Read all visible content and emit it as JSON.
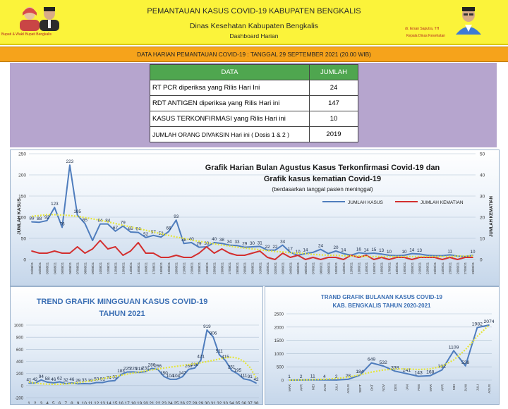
{
  "header": {
    "title": "PEMANTAUAN KASUS COVID-19 KABUPATEN BENGKALIS",
    "subtitle": "Dinas Kesehatan Kabupaten Bengkalis",
    "dashboard": "Dashboard Harian",
    "left_caption": "Bupati & Wakil Bupati Bengkalis",
    "right_name": "dr. Ersan Saputra, TH",
    "right_caption": "Kepala Dinas Kesehatan",
    "colors": {
      "background": "#fbf33a",
      "banner": "#f6a31b",
      "panel": "#b6a5ce",
      "table_header": "#4fa64f"
    }
  },
  "banner": "DATA HARIAN PEMANTAUAN COVID-19 : TANGGAL 29 SEPTEMBER 2021 (20.00 WIB)",
  "table": {
    "col_data": "DATA",
    "col_jumlah": "JUMLAH",
    "rows": [
      {
        "label": "RT PCR diperiksa yang Rilis Hari Ini",
        "value": "24"
      },
      {
        "label": "RDT ANTIGEN diperiksa yang Rilis Hari ini",
        "value": "147"
      },
      {
        "label": "KASUS TERKONFIRMASI yang Rilis Hari ini",
        "value": "10"
      },
      {
        "label": "JUMLAH ORANG DIVAKSIN Hari ini ( Dosis 1 & 2 )",
        "value": "2019"
      }
    ]
  },
  "chart_data": [
    {
      "type": "line",
      "title": "Grafik Harian Bulan Agustus Kasus Terkonfirmasi  Covid-19 dan Grafik kasus kematian Covid-19",
      "subtitle": "(berdasarkan tanggal pasien meninggal)",
      "ylabel": "JUMLAH   KASUS",
      "y2label": "JUMLAH KEMATIAN",
      "ylim": [
        0,
        250
      ],
      "y2lim": [
        0,
        50
      ],
      "yticks": [
        0,
        50,
        100,
        150,
        200,
        250
      ],
      "y2ticks": [
        0,
        10,
        20,
        30,
        40,
        50
      ],
      "legend_position": "top-right",
      "grid": true,
      "categories": [
        "01/08/21",
        "02/08/21",
        "03/08/21",
        "04/08/21",
        "05/08/21",
        "06/08/21",
        "07/08/21",
        "08/08/21",
        "09/08/21",
        "10/08/21",
        "11/08/21",
        "12/08/21",
        "13/08/21",
        "14/08/21",
        "15/08/21",
        "16/08/21",
        "17/08/21",
        "18/08/21",
        "19/08/21",
        "20/08/21",
        "21/08/21",
        "22/08/21",
        "23/08/21",
        "24/08/21",
        "25/08/21",
        "26/08/21",
        "27/08/21",
        "28/08/21",
        "29/08/21",
        "30/08/21",
        "31/08/21",
        "01/09/21",
        "02/09/21",
        "03/09/21",
        "04/09/21",
        "05/09/21",
        "06/09/21",
        "07/09/21",
        "08/09/21",
        "09/09/21",
        "10/09/21",
        "11/09/21",
        "12/09/21",
        "13/09/21",
        "14/09/21",
        "15/09/21",
        "16/09/21",
        "17/09/21",
        "18/09/21",
        "19/09/21",
        "20/09/21",
        "21/09/21",
        "22/09/21",
        "23/09/21",
        "24/09/21",
        "25/09/21",
        "26/09/21",
        "27/09/21",
        "28/09/21"
      ],
      "series": [
        {
          "name": "JUMLAH KASUS",
          "axis": "left",
          "color": "#4f7dbd",
          "values": [
            89,
            88,
            92,
            123,
            76,
            223,
            105,
            85,
            45,
            84,
            84,
            67,
            79,
            65,
            64,
            52,
            57,
            53,
            66,
            93,
            38,
            40,
            29,
            30,
            40,
            38,
            34,
            33,
            29,
            30,
            31,
            22,
            22,
            34,
            17,
            10,
            14,
            17,
            24,
            14,
            20,
            14,
            10,
            16,
            14,
            15,
            13,
            10,
            9,
            10,
            14,
            13,
            10,
            9,
            9,
            11,
            8,
            7,
            10
          ],
          "labels": [
            "89",
            "88",
            "92",
            "123",
            "76",
            "223",
            "105",
            "85",
            "",
            "84",
            "84",
            "67",
            "79",
            "65",
            "64",
            "52",
            "57",
            "53",
            "66",
            "93",
            "38",
            "40",
            "29",
            "30",
            "40",
            "38",
            "34",
            "33",
            "29",
            "30",
            "31",
            "22",
            "22",
            "34",
            "17",
            "10",
            "14",
            "",
            "24",
            "",
            "20",
            "14",
            "",
            "16",
            "14",
            "15",
            "13",
            "10",
            "",
            "10",
            "14",
            "13",
            "",
            "",
            "",
            "11",
            "",
            "",
            "10"
          ]
        },
        {
          "name": "JUMLAH KEMATIAN",
          "axis": "right",
          "color": "#d32f2f",
          "values": [
            4,
            3,
            3,
            4,
            3,
            3,
            6,
            3,
            5,
            9,
            5,
            6,
            2,
            4,
            8,
            3,
            3,
            1,
            1,
            2,
            1,
            1,
            3,
            6,
            3,
            5,
            3,
            2,
            2,
            3,
            4,
            1,
            0,
            3,
            1,
            2,
            0,
            1,
            0,
            1,
            1,
            0,
            2,
            1,
            2,
            0,
            1,
            0,
            1,
            1,
            0,
            1,
            1,
            1,
            0,
            1,
            0,
            1,
            1
          ]
        },
        {
          "name": "trend",
          "axis": "left",
          "color": "#e5e53a",
          "style": "dotted",
          "values": [
            102,
            104,
            106,
            106,
            105,
            104,
            102,
            99,
            96,
            93,
            89,
            85,
            81,
            77,
            73,
            69,
            65,
            61,
            57,
            53,
            50,
            46,
            43,
            40,
            37,
            34,
            32,
            29,
            27,
            25,
            23,
            21,
            19,
            18,
            16,
            15,
            14,
            12,
            11,
            10,
            10,
            9,
            8,
            8,
            7,
            7,
            7,
            7,
            7,
            7,
            7,
            7,
            7,
            7,
            7,
            7,
            8,
            8,
            9
          ]
        }
      ]
    },
    {
      "type": "line",
      "title": "TREND GRAFIK MINGGUAN KASUS COVID-19",
      "subtitle": "TAHUN 2021",
      "ylim": [
        -200,
        1000
      ],
      "yticks": [
        -200,
        0,
        200,
        400,
        600,
        800,
        1000
      ],
      "grid": true,
      "categories": [
        "1",
        "2",
        "3",
        "4",
        "5",
        "6",
        "7",
        "8",
        "9",
        "10",
        "11",
        "12",
        "13",
        "14",
        "15",
        "16",
        "17",
        "18",
        "19",
        "20",
        "21",
        "22",
        "23",
        "24",
        "25",
        "26",
        "27",
        "28",
        "29",
        "30",
        "31",
        "32",
        "33",
        "34",
        "35",
        "36",
        "37",
        "38"
      ],
      "series": [
        {
          "name": "kasus",
          "color": "#4f7dbd",
          "values": [
            41,
            42,
            94,
            58,
            46,
            62,
            32,
            46,
            29,
            33,
            30,
            50,
            51,
            74,
            83,
            183,
            225,
            226,
            218,
            231,
            286,
            266,
            150,
            104,
            104,
            147,
            268,
            290,
            421,
            919,
            806,
            511,
            415,
            251,
            195,
            111,
            91,
            42
          ],
          "labels": [
            "41",
            "42",
            "94",
            "58",
            "46",
            "62",
            "32",
            "46",
            "29",
            "33",
            "30",
            "50",
            "51",
            "74",
            "83",
            "183",
            "225",
            "226",
            "218",
            "231",
            "286",
            "266",
            "150",
            "104",
            "104",
            "147",
            "268",
            "290",
            "421",
            "919",
            "806",
            "511",
            "415",
            "251",
            "195",
            "111",
            "91",
            "42"
          ]
        },
        {
          "name": "trend",
          "color": "#e5e53a",
          "style": "dotted",
          "values": [
            58,
            42,
            31,
            24,
            22,
            23,
            28,
            36,
            48,
            62,
            78,
            96,
            114,
            133,
            152,
            171,
            190,
            208,
            226,
            243,
            259,
            275,
            290,
            305,
            319,
            333,
            347,
            362,
            378,
            396,
            417,
            440,
            460,
            470,
            455,
            400,
            300,
            130
          ]
        }
      ]
    },
    {
      "type": "line",
      "title": "TRAND  GRAFIK BULANAN KASUS COVID-19",
      "subtitle": "KAB. BENGKALIS TAHUN 2020-2021",
      "ylim": [
        0,
        2500
      ],
      "yticks": [
        0,
        500,
        1000,
        1500,
        2000,
        2500
      ],
      "grid": true,
      "categories": [
        "MAR",
        "APR",
        "MEI",
        "JUNI",
        "JULI",
        "AGUS",
        "SEPT",
        "OKT",
        "NOV",
        "DES",
        "JAN",
        "FEB",
        "MAR",
        "APR",
        "MEI",
        "JUNI",
        "JULI",
        "AGUS"
      ],
      "series": [
        {
          "name": "kasus",
          "color": "#4f7dbd",
          "values": [
            1,
            2,
            11,
            4,
            2,
            28,
            184,
            649,
            532,
            338,
            241,
            143,
            168,
            382,
            1109,
            538,
            1982,
            2074
          ],
          "labels": [
            "1",
            "2",
            "11",
            "4",
            "2",
            "28",
            "184",
            "649",
            "532",
            "338",
            "241",
            "143",
            "168",
            "382",
            "1109",
            "538",
            "1982",
            "2074"
          ]
        },
        {
          "name": "trend",
          "color": "#e5e53a",
          "style": "dotted",
          "values": [
            0,
            5,
            15,
            30,
            60,
            110,
            200,
            300,
            380,
            420,
            420,
            400,
            420,
            520,
            760,
            1150,
            1650,
            2070
          ]
        }
      ]
    }
  ]
}
